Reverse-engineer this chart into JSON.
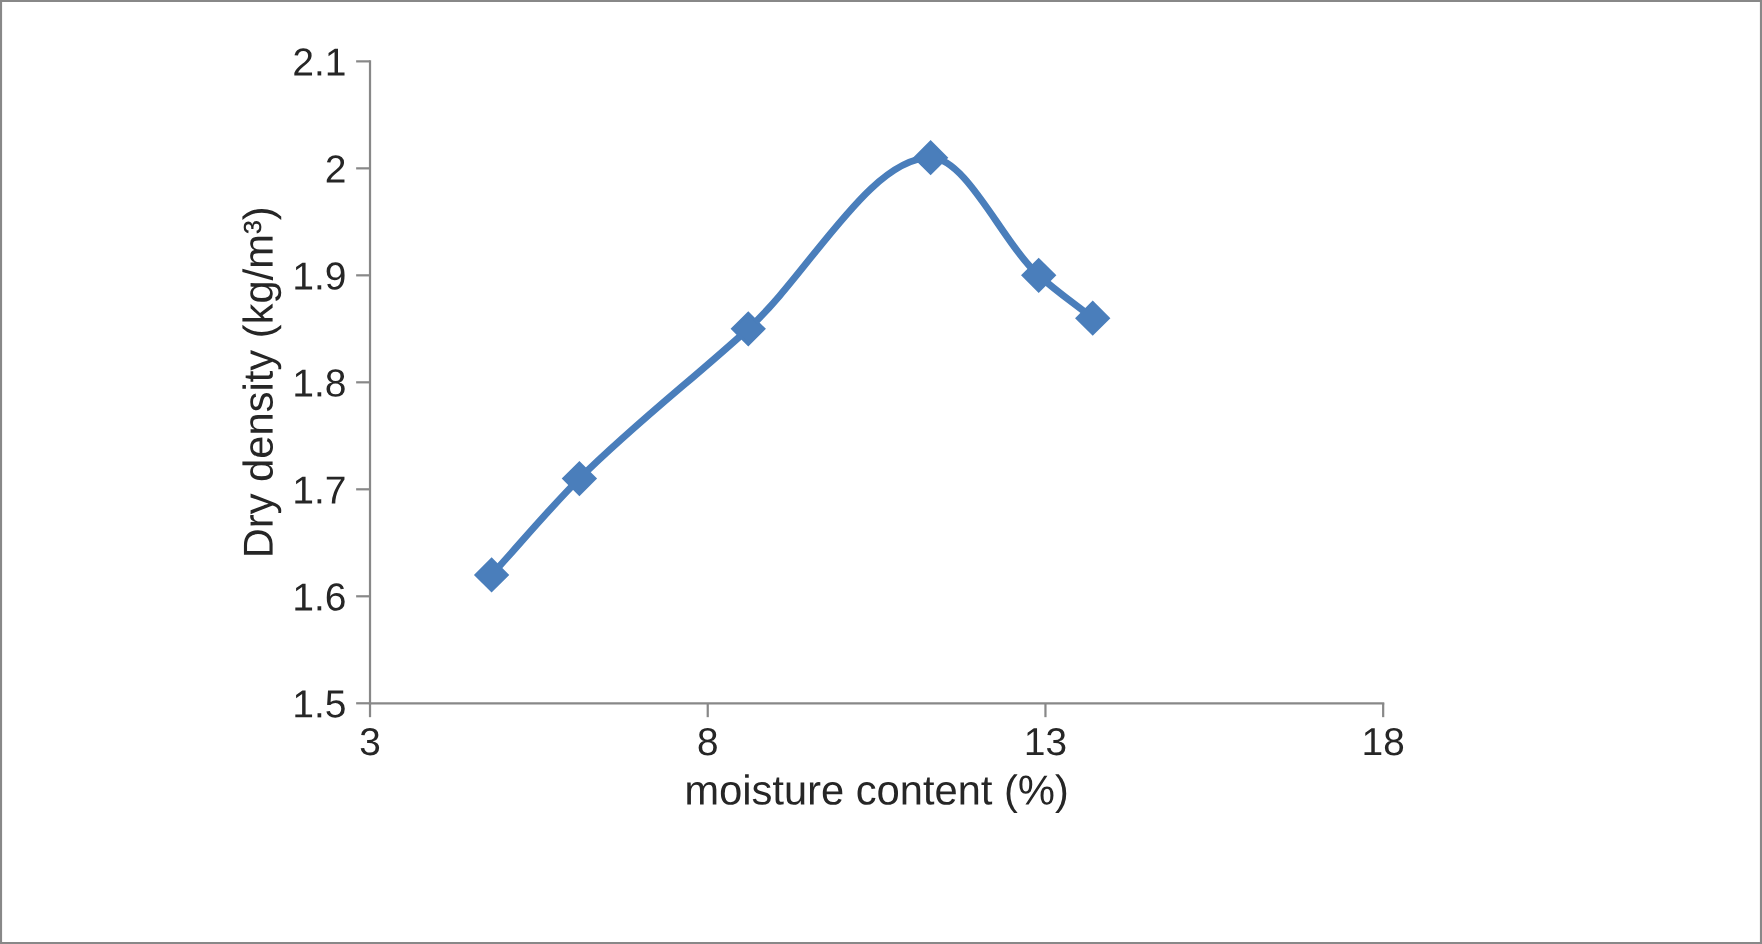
{
  "chart_data": {
    "type": "line",
    "xlabel": "moisture content (%)",
    "ylabel": "Dry density (kg/m³)",
    "x": [
      4.8,
      6.1,
      8.6,
      11.3,
      12.9,
      13.7
    ],
    "series": [
      {
        "color": "#4a7ebb",
        "values": [
          1.62,
          1.71,
          1.85,
          2.01,
          1.9,
          1.86
        ]
      }
    ],
    "xlim": [
      3,
      18
    ],
    "xticks": [
      3,
      8,
      13,
      18
    ],
    "ylim": [
      1.5,
      2.1
    ],
    "yticks": [
      1.5,
      1.6,
      1.7,
      1.8,
      1.9,
      2,
      2.1
    ],
    "marker": "diamond",
    "line_style": "solid",
    "grid": false,
    "legend": false
  }
}
